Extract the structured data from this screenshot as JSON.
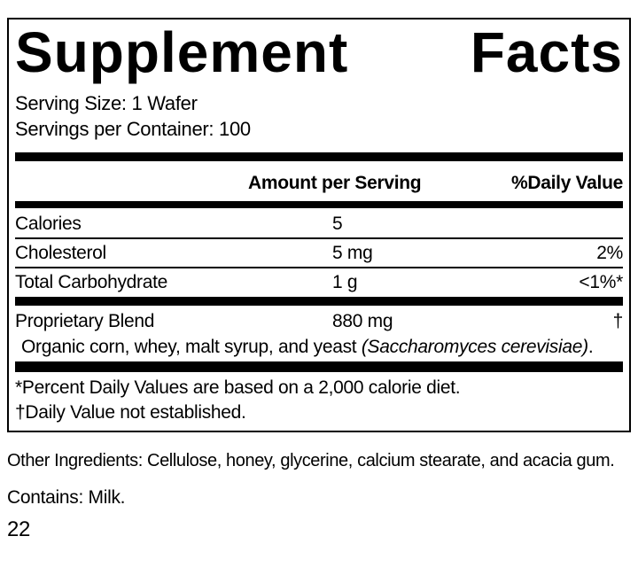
{
  "colors": {
    "text": "#000000",
    "background": "#ffffff",
    "bar": "#000000"
  },
  "label": {
    "title": {
      "word1": "Supplement",
      "word2": "Facts"
    },
    "serving_size": "Serving Size: 1 Wafer",
    "servings_per_container": "Servings per Container: 100",
    "columns": {
      "amount_header": "Amount per Serving",
      "daily_value_header": "%Daily Value"
    },
    "nutrients": [
      {
        "name": "Calories",
        "amount": "5",
        "daily_value": ""
      },
      {
        "name": "Cholesterol",
        "amount": "5 mg",
        "daily_value": "2%"
      },
      {
        "name": "Total Carbohydrate",
        "amount": "1 g",
        "daily_value": "<1%*"
      }
    ],
    "proprietary_blend": {
      "name": "Proprietary Blend",
      "amount": "880 mg",
      "daily_value": "†"
    },
    "blend_ingredients": {
      "prefix": "Organic corn, whey, malt syrup, and yeast ",
      "italic": "(Saccharomyces cerevisiae)",
      "suffix": "."
    },
    "footnotes": {
      "percent": "*Percent Daily Values are based on a 2,000 calorie diet.",
      "dagger": "†Daily Value not established."
    }
  },
  "additional_info": {
    "other_ingredients": "Other Ingredients: Cellulose, honey, glycerine, calcium stearate, and acacia gum.",
    "contains": "Contains: Milk.",
    "page_number": "22"
  }
}
